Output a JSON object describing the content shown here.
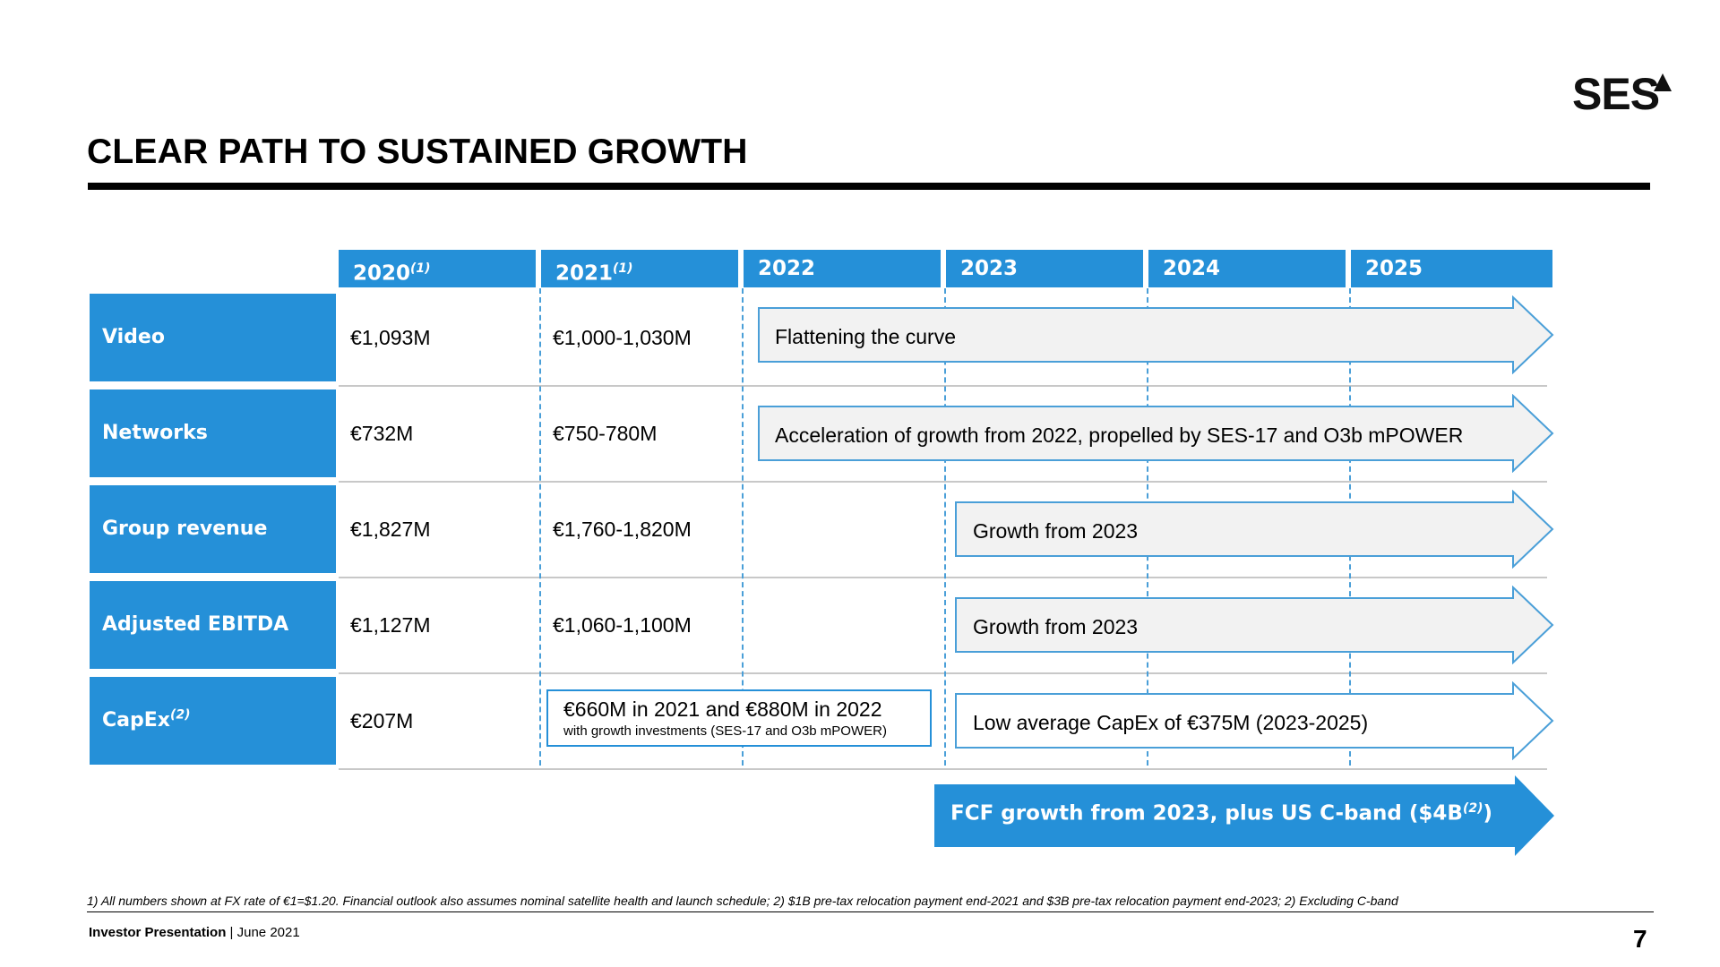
{
  "brand": {
    "logo_text": "SES"
  },
  "title": "CLEAR PATH TO SUSTAINED GROWTH",
  "years": [
    {
      "label": "2020",
      "note": "(1)"
    },
    {
      "label": "2021",
      "note": "(1)"
    },
    {
      "label": "2022",
      "note": ""
    },
    {
      "label": "2023",
      "note": ""
    },
    {
      "label": "2024",
      "note": ""
    },
    {
      "label": "2025",
      "note": ""
    }
  ],
  "rows": [
    {
      "label": "Video",
      "note": "",
      "v2020": "€1,093M",
      "v2021": "€1,000-1,030M",
      "outlook": "Flattening the curve"
    },
    {
      "label": "Networks",
      "note": "",
      "v2020": "€732M",
      "v2021": "€750-780M",
      "outlook": "Acceleration of growth from 2022, propelled by SES-17 and O3b mPOWER"
    },
    {
      "label": "Group revenue",
      "note": "",
      "v2020": "€1,827M",
      "v2021": "€1,760-1,820M",
      "outlook": "Growth from 2023"
    },
    {
      "label": "Adjusted EBITDA",
      "note": "",
      "v2020": "€1,127M",
      "v2021": "€1,060-1,100M",
      "outlook": "Growth from 2023"
    },
    {
      "label": "CapEx",
      "note": "(2)",
      "v2020": "€207M",
      "v2021": "",
      "outlook": "Low average CapEx of €375M (2023-2025)"
    }
  ],
  "capex_2021_2022": {
    "main": "€660M in 2021 and €880M in 2022",
    "sub": "with growth investments (SES-17 and O3b mPOWER)"
  },
  "fcf": {
    "text": "FCF growth from 2023, plus US C-band ($4B",
    "note": "(2)",
    "close": ")"
  },
  "footnote": "1) All numbers shown at FX rate of €1=$1.20. Financial outlook also assumes nominal satellite health and launch schedule; 2) $1B pre-tax relocation payment end-2021 and $3B pre-tax relocation payment end-2023; 2) Excluding C-band",
  "footer": {
    "presentation": "Investor Presentation",
    "separator": " | ",
    "date": "June 2021",
    "page": "7"
  },
  "colors": {
    "accent": "#2590d8",
    "arrow_fill": "#f2f2f2",
    "arrow_stroke": "#4a9fd8"
  }
}
